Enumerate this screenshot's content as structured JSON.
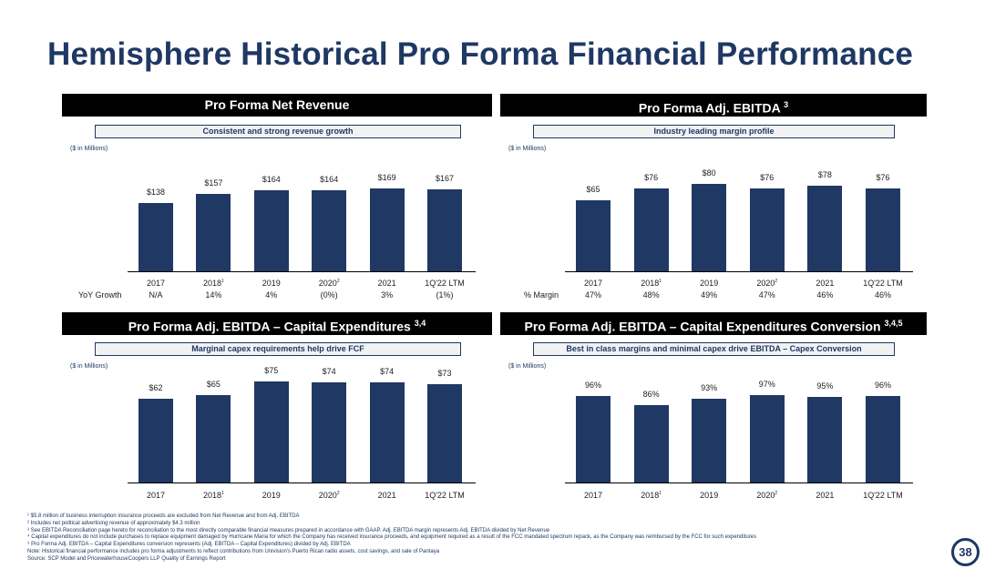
{
  "title": "Hemisphere Historical Pro Forma Financial Performance",
  "units": "($ in Millions)",
  "page_number": "38",
  "chart_data": [
    {
      "type": "bar",
      "title": "Pro Forma Net Revenue",
      "title_sup": "",
      "subtitle": "Consistent and strong revenue growth",
      "categories": [
        "2017",
        "2018",
        "2019",
        "2020",
        "2021",
        "1Q'22 LTM"
      ],
      "category_sups": [
        "",
        "1",
        "",
        "2",
        "",
        ""
      ],
      "values": [
        138,
        157,
        164,
        164,
        169,
        167
      ],
      "value_labels": [
        "$138",
        "$157",
        "$164",
        "$164",
        "$169",
        "$167"
      ],
      "extra_row": {
        "label": "YoY Growth",
        "values": [
          "N/A",
          "14%",
          "4%",
          "(0%)",
          "3%",
          "(1%)"
        ]
      }
    },
    {
      "type": "bar",
      "title": "Pro Forma Adj. EBITDA",
      "title_sup": "3",
      "subtitle": "Industry leading margin profile",
      "categories": [
        "2017",
        "2018",
        "2019",
        "2020",
        "2021",
        "1Q'22 LTM"
      ],
      "category_sups": [
        "",
        "1",
        "",
        "2",
        "",
        ""
      ],
      "values": [
        65,
        76,
        80,
        76,
        78,
        76
      ],
      "value_labels": [
        "$65",
        "$76",
        "$80",
        "$76",
        "$78",
        "$76"
      ],
      "extra_row": {
        "label": "% Margin",
        "values": [
          "47%",
          "48%",
          "49%",
          "47%",
          "46%",
          "46%"
        ]
      }
    },
    {
      "type": "bar",
      "title": "Pro Forma Adj. EBITDA – Capital Expenditures",
      "title_sup": "3,4",
      "subtitle": "Marginal capex requirements help drive FCF",
      "categories": [
        "2017",
        "2018",
        "2019",
        "2020",
        "2021",
        "1Q'22 LTM"
      ],
      "category_sups": [
        "",
        "1",
        "",
        "2",
        "",
        ""
      ],
      "values": [
        62,
        65,
        75,
        74,
        74,
        73
      ],
      "value_labels": [
        "$62",
        "$65",
        "$75",
        "$74",
        "$74",
        "$73"
      ]
    },
    {
      "type": "bar",
      "title": "Pro Forma Adj. EBITDA – Capital Expenditures Conversion",
      "title_sup": "3,4,5",
      "subtitle": "Best in class margins and minimal capex drive EBITDA – Capex Conversion",
      "categories": [
        "2017",
        "2018",
        "2019",
        "2020",
        "2021",
        "1Q'22 LTM"
      ],
      "category_sups": [
        "",
        "1",
        "",
        "2",
        "",
        ""
      ],
      "values": [
        96,
        86,
        93,
        97,
        95,
        96
      ],
      "value_labels": [
        "96%",
        "86%",
        "93%",
        "97%",
        "95%",
        "96%"
      ]
    }
  ],
  "footnotes": [
    "¹ $5.8 million of business interruption insurance proceeds are excluded from Net Revenue and from Adj. EBITDA",
    "² Includes net political advertising revenue of approximately $4.3 million",
    "³ See EBITDA Reconciliation page hereto for reconciliation to the most directly comparable financial measures prepared in accordance with GAAP. Adj. EBITDA margin represents Adj. EBITDA divided by Net Revenue",
    "⁴ Capital expenditures do not include purchases to replace equipment damaged by Hurricane Maria for which the Company has received insurance proceeds, and equipment required as a result of the FCC mandated spectrum repack, as the Company was reimbursed by the FCC for such expenditures",
    "⁵ Pro Forma Adj. EBITDA – Capital Expenditures conversion represents (Adj. EBITDA – Capital Expenditures) divided by Adj. EBITDA",
    "Note: Historical financial performance includes pro forma adjustments to reflect contributions from Univision's Puerto Rican radio assets, cost savings, and sale of Pantaya",
    "Source: SCP Model and PricewaterhouseCoopers LLP Quality of Earnings Report"
  ]
}
